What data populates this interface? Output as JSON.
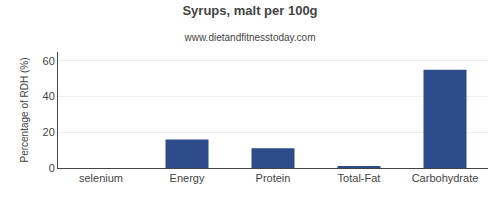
{
  "chart_data": {
    "type": "bar",
    "title": "Syrups, malt per 100g",
    "subtitle": "www.dietandfitnesstoday.com",
    "categories": [
      "selenium",
      "Energy",
      "Protein",
      "Total-Fat",
      "Carbohydrate"
    ],
    "values": [
      0,
      16,
      11,
      1,
      55
    ],
    "color": "#2e4b8a",
    "ylabel": "Percentage of RDH (%)",
    "ylim": [
      0,
      65
    ],
    "yticks": [
      0,
      20,
      40,
      60
    ],
    "grid": true
  }
}
